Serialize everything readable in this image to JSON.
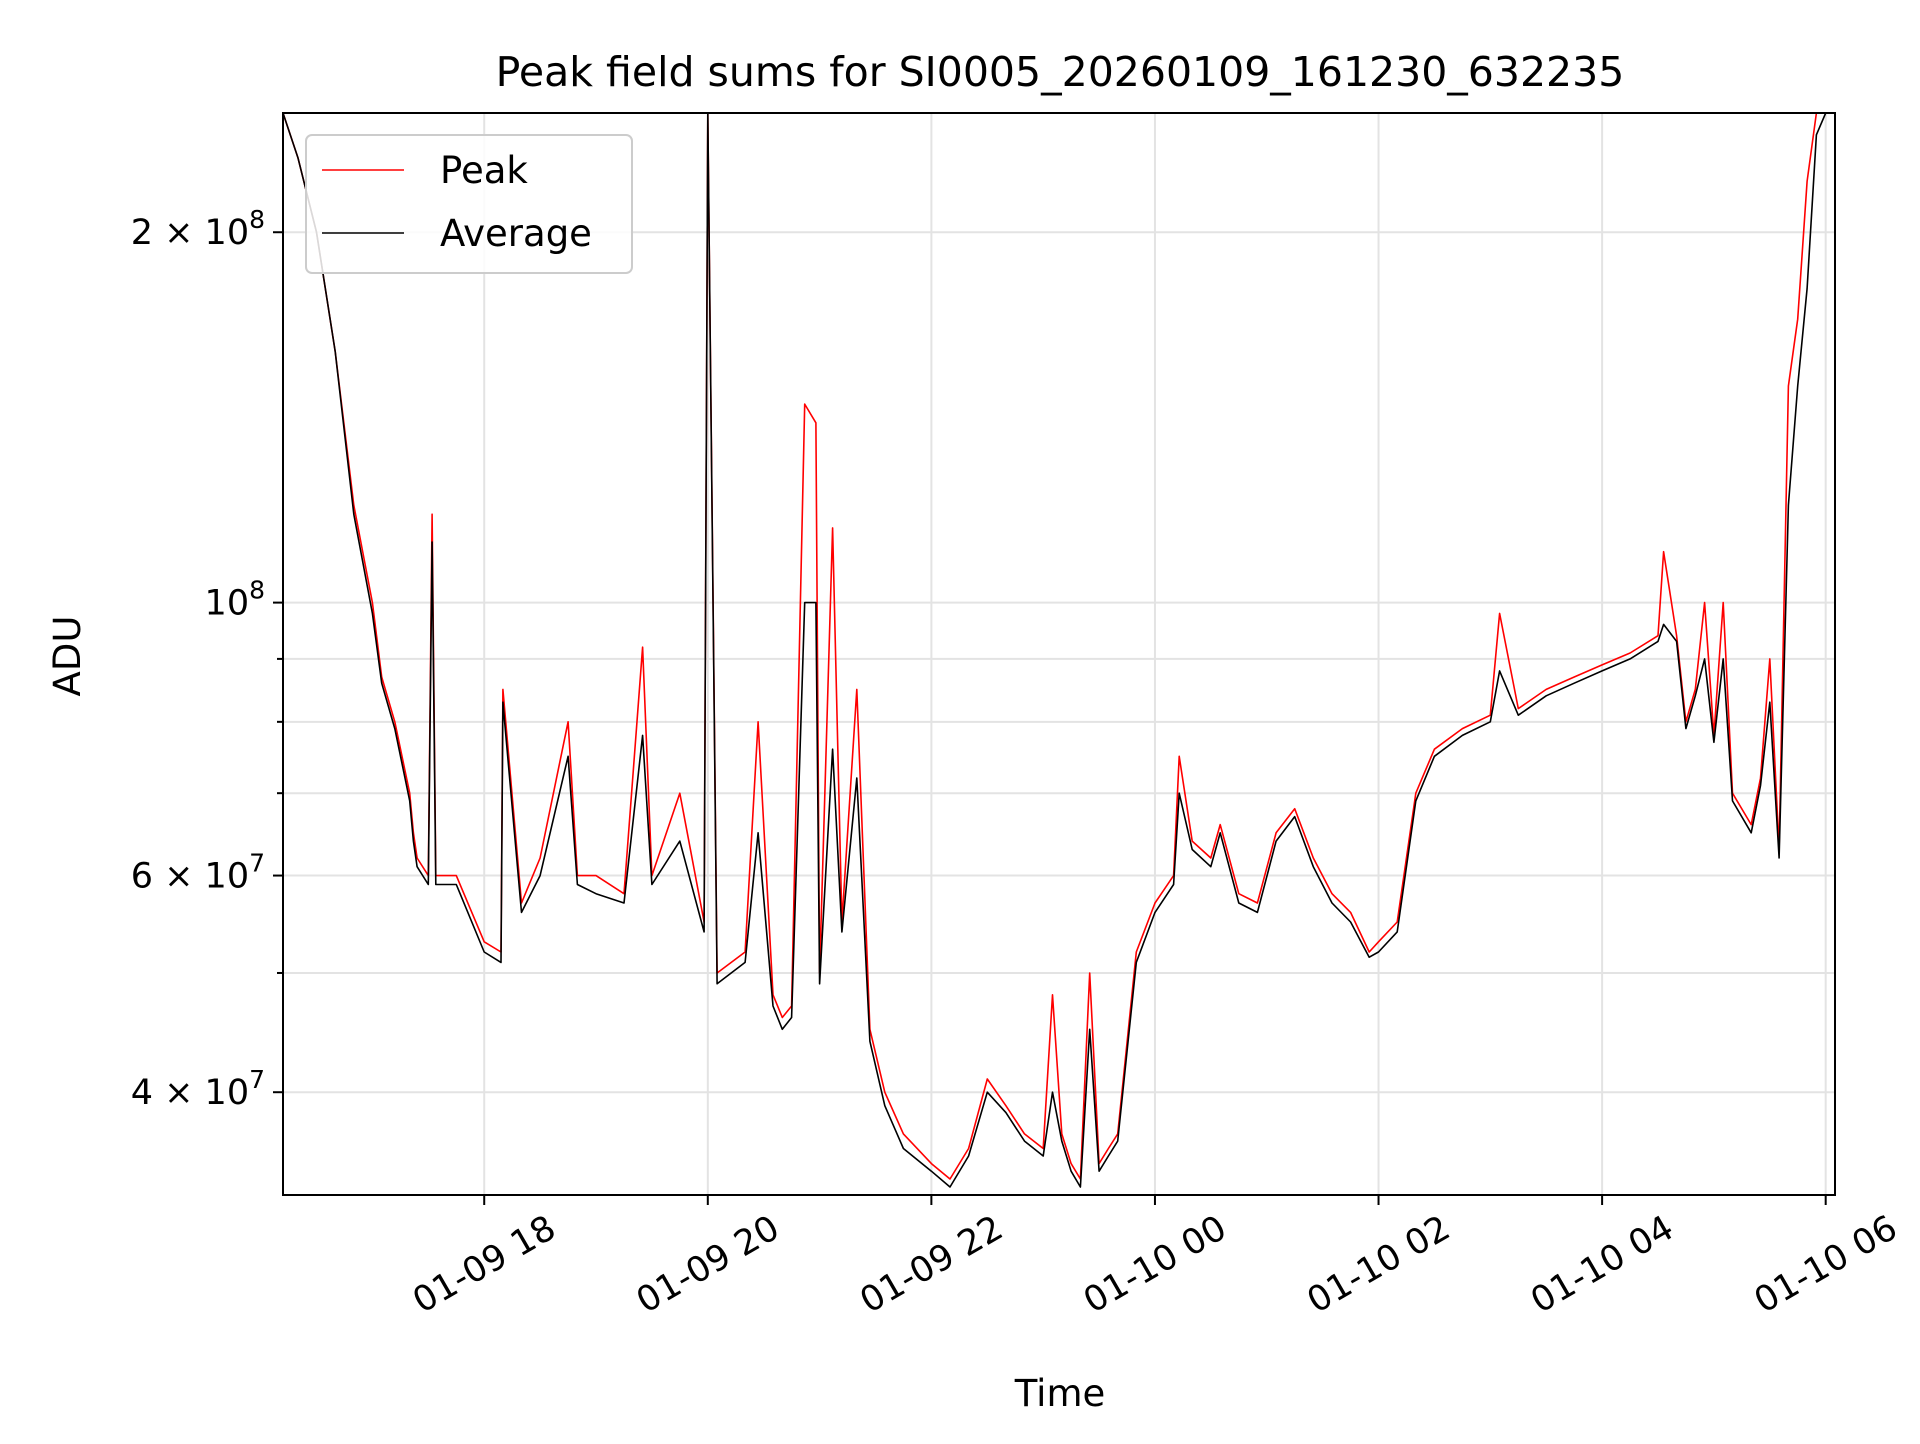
{
  "chart_data": {
    "type": "line",
    "title": "Peak field sums for SI0005_20260109_161230_632235",
    "xlabel": "Time",
    "ylabel": "ADU",
    "x_scale": "time",
    "y_scale": "log",
    "xlim": [
      "2026-01-09 16:12",
      "2026-01-10 06:05"
    ],
    "ylim": [
      33000000,
      250000000
    ],
    "grid": true,
    "legend": "upper left",
    "x_ticks": [
      {
        "label": "01-09 18",
        "value": "2026-01-09 18:00"
      },
      {
        "label": "01-09 20",
        "value": "2026-01-09 20:00"
      },
      {
        "label": "01-09 22",
        "value": "2026-01-09 22:00"
      },
      {
        "label": "01-10 00",
        "value": "2026-01-10 00:00"
      },
      {
        "label": "01-10 02",
        "value": "2026-01-10 02:00"
      },
      {
        "label": "01-10 04",
        "value": "2026-01-10 04:00"
      },
      {
        "label": "01-10 06",
        "value": "2026-01-10 06:00"
      }
    ],
    "y_ticks": [
      {
        "value": 40000000,
        "base": "4 × 10",
        "exp": "7"
      },
      {
        "value": 60000000,
        "base": "6 × 10",
        "exp": "7"
      },
      {
        "value": 100000000,
        "base": "10",
        "exp": "8"
      },
      {
        "value": 200000000,
        "base": "2 × 10",
        "exp": "8"
      }
    ],
    "y_minor_ticks": [
      30000000,
      50000000,
      70000000,
      80000000,
      90000000
    ],
    "series": [
      {
        "name": "Peak",
        "color": "#ff0000",
        "x": [
          "2026-01-09 16:12",
          "2026-01-09 16:20",
          "2026-01-09 16:30",
          "2026-01-09 16:40",
          "2026-01-09 16:50",
          "2026-01-09 17:00",
          "2026-01-09 17:05",
          "2026-01-09 17:12",
          "2026-01-09 17:20",
          "2026-01-09 17:22",
          "2026-01-09 17:24",
          "2026-01-09 17:30",
          "2026-01-09 17:32",
          "2026-01-09 17:34",
          "2026-01-09 17:45",
          "2026-01-09 18:00",
          "2026-01-09 18:09",
          "2026-01-09 18:10",
          "2026-01-09 18:20",
          "2026-01-09 18:30",
          "2026-01-09 18:45",
          "2026-01-09 18:50",
          "2026-01-09 19:00",
          "2026-01-09 19:15",
          "2026-01-09 19:25",
          "2026-01-09 19:30",
          "2026-01-09 19:45",
          "2026-01-09 19:58",
          "2026-01-09 20:00",
          "2026-01-09 20:05",
          "2026-01-09 20:20",
          "2026-01-09 20:27",
          "2026-01-09 20:35",
          "2026-01-09 20:40",
          "2026-01-09 20:45",
          "2026-01-09 20:52",
          "2026-01-09 20:58",
          "2026-01-09 21:00",
          "2026-01-09 21:07",
          "2026-01-09 21:12",
          "2026-01-09 21:20",
          "2026-01-09 21:27",
          "2026-01-09 21:35",
          "2026-01-09 21:45",
          "2026-01-09 22:00",
          "2026-01-09 22:10",
          "2026-01-09 22:20",
          "2026-01-09 22:30",
          "2026-01-09 22:40",
          "2026-01-09 22:50",
          "2026-01-09 23:00",
          "2026-01-09 23:05",
          "2026-01-09 23:10",
          "2026-01-09 23:15",
          "2026-01-09 23:20",
          "2026-01-09 23:25",
          "2026-01-09 23:30",
          "2026-01-09 23:35",
          "2026-01-09 23:40",
          "2026-01-09 23:50",
          "2026-01-10 00:00",
          "2026-01-10 00:10",
          "2026-01-10 00:13",
          "2026-01-10 00:20",
          "2026-01-10 00:30",
          "2026-01-10 00:35",
          "2026-01-10 00:45",
          "2026-01-10 00:55",
          "2026-01-10 01:05",
          "2026-01-10 01:15",
          "2026-01-10 01:25",
          "2026-01-10 01:35",
          "2026-01-10 01:45",
          "2026-01-10 01:55",
          "2026-01-10 02:00",
          "2026-01-10 02:10",
          "2026-01-10 02:20",
          "2026-01-10 02:30",
          "2026-01-10 02:45",
          "2026-01-10 03:00",
          "2026-01-10 03:05",
          "2026-01-10 03:15",
          "2026-01-10 03:30",
          "2026-01-10 03:45",
          "2026-01-10 04:00",
          "2026-01-10 04:15",
          "2026-01-10 04:30",
          "2026-01-10 04:33",
          "2026-01-10 04:40",
          "2026-01-10 04:45",
          "2026-01-10 04:50",
          "2026-01-10 04:55",
          "2026-01-10 05:00",
          "2026-01-10 05:05",
          "2026-01-10 05:10",
          "2026-01-10 05:20",
          "2026-01-10 05:25",
          "2026-01-10 05:30",
          "2026-01-10 05:35",
          "2026-01-10 05:40",
          "2026-01-10 05:45",
          "2026-01-10 05:50",
          "2026-01-10 05:55",
          "2026-01-10 06:00",
          "2026-01-10 06:05"
        ],
        "y": [
          250000000,
          230000000,
          200000000,
          160000000,
          120000000,
          100000000,
          87000000,
          80000000,
          70000000,
          65000000,
          62000000,
          60000000,
          118000000,
          60000000,
          60000000,
          53000000,
          52000000,
          85000000,
          57000000,
          62000000,
          80000000,
          60000000,
          60000000,
          58000000,
          92000000,
          60000000,
          70000000,
          55000000,
          250000000,
          50000000,
          52000000,
          80000000,
          48000000,
          46000000,
          47000000,
          145000000,
          140000000,
          50000000,
          115000000,
          55000000,
          85000000,
          45000000,
          40000000,
          37000000,
          35000000,
          34000000,
          36000000,
          41000000,
          39000000,
          37000000,
          36000000,
          48000000,
          37000000,
          35000000,
          34000000,
          50000000,
          35000000,
          36000000,
          37000000,
          52000000,
          57000000,
          60000000,
          75000000,
          64000000,
          62000000,
          66000000,
          58000000,
          57000000,
          65000000,
          68000000,
          62000000,
          58000000,
          56000000,
          52000000,
          53000000,
          55000000,
          70000000,
          76000000,
          79000000,
          81000000,
          98000000,
          82000000,
          85000000,
          87000000,
          89000000,
          91000000,
          94000000,
          110000000,
          94000000,
          80000000,
          85000000,
          100000000,
          78000000,
          100000000,
          70000000,
          66000000,
          72000000,
          90000000,
          63000000,
          150000000,
          170000000,
          220000000,
          250000000,
          250000000,
          250000000
        ]
      },
      {
        "name": "Average",
        "color": "#000000",
        "x": [
          "2026-01-09 16:12",
          "2026-01-09 16:20",
          "2026-01-09 16:30",
          "2026-01-09 16:40",
          "2026-01-09 16:50",
          "2026-01-09 17:00",
          "2026-01-09 17:05",
          "2026-01-09 17:12",
          "2026-01-09 17:20",
          "2026-01-09 17:22",
          "2026-01-09 17:24",
          "2026-01-09 17:30",
          "2026-01-09 17:32",
          "2026-01-09 17:34",
          "2026-01-09 17:45",
          "2026-01-09 18:00",
          "2026-01-09 18:09",
          "2026-01-09 18:10",
          "2026-01-09 18:20",
          "2026-01-09 18:30",
          "2026-01-09 18:45",
          "2026-01-09 18:50",
          "2026-01-09 19:00",
          "2026-01-09 19:15",
          "2026-01-09 19:25",
          "2026-01-09 19:30",
          "2026-01-09 19:45",
          "2026-01-09 19:58",
          "2026-01-09 20:00",
          "2026-01-09 20:05",
          "2026-01-09 20:20",
          "2026-01-09 20:27",
          "2026-01-09 20:35",
          "2026-01-09 20:40",
          "2026-01-09 20:45",
          "2026-01-09 20:52",
          "2026-01-09 20:58",
          "2026-01-09 21:00",
          "2026-01-09 21:07",
          "2026-01-09 21:12",
          "2026-01-09 21:20",
          "2026-01-09 21:27",
          "2026-01-09 21:35",
          "2026-01-09 21:45",
          "2026-01-09 22:00",
          "2026-01-09 22:10",
          "2026-01-09 22:20",
          "2026-01-09 22:30",
          "2026-01-09 22:40",
          "2026-01-09 22:50",
          "2026-01-09 23:00",
          "2026-01-09 23:05",
          "2026-01-09 23:10",
          "2026-01-09 23:15",
          "2026-01-09 23:20",
          "2026-01-09 23:25",
          "2026-01-09 23:30",
          "2026-01-09 23:35",
          "2026-01-09 23:40",
          "2026-01-09 23:50",
          "2026-01-10 00:00",
          "2026-01-10 00:10",
          "2026-01-10 00:13",
          "2026-01-10 00:20",
          "2026-01-10 00:30",
          "2026-01-10 00:35",
          "2026-01-10 00:45",
          "2026-01-10 00:55",
          "2026-01-10 01:05",
          "2026-01-10 01:15",
          "2026-01-10 01:25",
          "2026-01-10 01:35",
          "2026-01-10 01:45",
          "2026-01-10 01:55",
          "2026-01-10 02:00",
          "2026-01-10 02:10",
          "2026-01-10 02:20",
          "2026-01-10 02:30",
          "2026-01-10 02:45",
          "2026-01-10 03:00",
          "2026-01-10 03:05",
          "2026-01-10 03:15",
          "2026-01-10 03:30",
          "2026-01-10 03:45",
          "2026-01-10 04:00",
          "2026-01-10 04:15",
          "2026-01-10 04:30",
          "2026-01-10 04:33",
          "2026-01-10 04:40",
          "2026-01-10 04:45",
          "2026-01-10 04:50",
          "2026-01-10 04:55",
          "2026-01-10 05:00",
          "2026-01-10 05:05",
          "2026-01-10 05:10",
          "2026-01-10 05:20",
          "2026-01-10 05:25",
          "2026-01-10 05:30",
          "2026-01-10 05:35",
          "2026-01-10 05:40",
          "2026-01-10 05:45",
          "2026-01-10 05:50",
          "2026-01-10 05:55",
          "2026-01-10 06:00",
          "2026-01-10 06:05"
        ],
        "y": [
          250000000,
          230000000,
          200000000,
          160000000,
          118000000,
          98000000,
          86000000,
          79000000,
          69000000,
          64000000,
          61000000,
          59000000,
          112000000,
          59000000,
          59000000,
          52000000,
          51000000,
          83000000,
          56000000,
          60000000,
          75000000,
          59000000,
          58000000,
          57000000,
          78000000,
          59000000,
          64000000,
          54000000,
          250000000,
          49000000,
          51000000,
          65000000,
          47000000,
          45000000,
          46000000,
          100000000,
          100000000,
          49000000,
          76000000,
          54000000,
          72000000,
          44000000,
          39000000,
          36000000,
          34500000,
          33500000,
          35500000,
          40000000,
          38500000,
          36500000,
          35500000,
          40000000,
          36500000,
          34500000,
          33500000,
          45000000,
          34500000,
          35500000,
          36500000,
          51000000,
          56000000,
          59000000,
          70000000,
          63000000,
          61000000,
          65000000,
          57000000,
          56000000,
          64000000,
          67000000,
          61000000,
          57000000,
          55000000,
          51500000,
          52000000,
          54000000,
          69000000,
          75000000,
          78000000,
          80000000,
          88000000,
          81000000,
          84000000,
          86000000,
          88000000,
          90000000,
          93000000,
          96000000,
          93000000,
          79000000,
          84000000,
          90000000,
          77000000,
          90000000,
          69000000,
          65000000,
          71000000,
          83000000,
          62000000,
          120000000,
          150000000,
          180000000,
          240000000,
          250000000,
          250000000
        ]
      }
    ]
  }
}
